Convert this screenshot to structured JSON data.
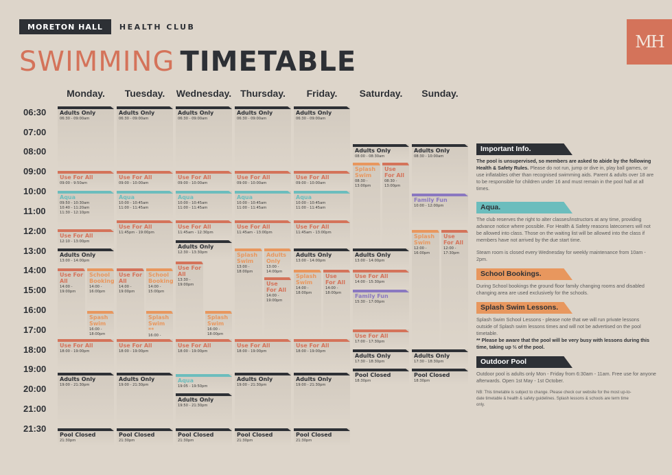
{
  "brand": {
    "name": "MORETON HALL",
    "sub": "HEALTH CLUB",
    "logo": "MH"
  },
  "title": {
    "part1": "SWIMMING",
    "part2": "TIMETABLE"
  },
  "colors": {
    "adults": "#2d3035",
    "useforall": "#d4735a",
    "aqua": "#6bbdbd",
    "splash": "#e8975e",
    "school": "#e8975e",
    "family": "#8a78c0"
  },
  "times": [
    "06:30",
    "07:00",
    "08:00",
    "09:00",
    "10:00",
    "11:00",
    "12:00",
    "13:00",
    "14:00",
    "15:00",
    "16:00",
    "17:00",
    "18:00",
    "19:00",
    "20:00",
    "21:00",
    "21:30"
  ],
  "days": [
    {
      "name": "Monday.",
      "blocks": [
        {
          "type": "adults",
          "label": "Adults Only",
          "time": "06:30 - 09:00am"
        },
        {
          "type": "useforall",
          "label": "Use For All",
          "time": "09:00 - 9:50am"
        },
        {
          "type": "aqua",
          "label": "Aqua",
          "time": "09:50 - 10:30am\n10:40 - 11:20am\n11:30 - 12:10pm"
        },
        {
          "type": "useforall",
          "label": "Use For All",
          "time": "12:10 - 13:00pm"
        },
        {
          "type": "adults",
          "label": "Adults Only",
          "time": "13:00 - 14:00pm"
        },
        {
          "type": "useforall",
          "label": "Use For All",
          "time": "14:00 - 19:00pm"
        },
        {
          "type": "school",
          "label": "School Booking",
          "time": "14:00 - 16:00pm"
        },
        {
          "type": "splash",
          "label": "Spash Swim",
          "time": "16:00 - 18:00pm"
        },
        {
          "type": "useforall",
          "label": "Use For All",
          "time": "18:00 - 19:00pm"
        },
        {
          "type": "adults",
          "label": "Adults Only",
          "time": "19:00 - 21:30pm"
        },
        {
          "type": "adults",
          "label": "Pool Closed",
          "time": "21:30pm"
        }
      ]
    },
    {
      "name": "Tuesday.",
      "blocks": [
        {
          "type": "adults",
          "label": "Adults Only",
          "time": "06:30 - 09:00am"
        },
        {
          "type": "useforall",
          "label": "Use For All",
          "time": "09:00 - 10:00am"
        },
        {
          "type": "aqua",
          "label": "Aqua",
          "time": "10:00 - 10:45am\n11:00 - 11:45am"
        },
        {
          "type": "useforall",
          "label": "Use For All",
          "time": "11:45pm - 19:00pm"
        },
        {
          "type": "useforall",
          "label": "Use For All",
          "time": "14:00 - 19:00pm"
        },
        {
          "type": "school",
          "label": "School Booking",
          "time": "14:00 - 15:00pm"
        },
        {
          "type": "splash",
          "label": "Splash Swim **",
          "time": "16:00 - 18:00pm"
        },
        {
          "type": "useforall",
          "label": "Use For All",
          "time": "18:00 - 19:00pm"
        },
        {
          "type": "adults",
          "label": "Adults Only",
          "time": "19:00 - 21:30pm"
        },
        {
          "type": "adults",
          "label": "Pool Closed",
          "time": "21:30pm"
        }
      ]
    },
    {
      "name": "Wednesday.",
      "blocks": [
        {
          "type": "adults",
          "label": "Adults Only",
          "time": "06:30 - 09:00am"
        },
        {
          "type": "useforall",
          "label": "Use For All",
          "time": "09:00 - 10:00am"
        },
        {
          "type": "aqua",
          "label": "Aqua",
          "time": "10:00 - 10:45am\n11:00 - 11:45am"
        },
        {
          "type": "useforall",
          "label": "Use For All",
          "time": "11:45am - 12:30pm"
        },
        {
          "type": "adults",
          "label": "Adults Only",
          "time": "12:30 - 13:30pm"
        },
        {
          "type": "useforall",
          "label": "Use For All",
          "time": "13:30 - 19:00pm"
        },
        {
          "type": "splash",
          "label": "Splash Swim",
          "time": "16:00 - 18:00pm"
        },
        {
          "type": "useforall",
          "label": "Use For All",
          "time": "18:00 - 19:00pm"
        },
        {
          "type": "aqua",
          "label": "Aqua",
          "time": "19:05 - 19:50pm"
        },
        {
          "type": "adults",
          "label": "Adults Only",
          "time": "19:50 - 21:30pm"
        },
        {
          "type": "adults",
          "label": "Pool Closed",
          "time": "21:30pm"
        }
      ]
    },
    {
      "name": "Thursday.",
      "blocks": [
        {
          "type": "adults",
          "label": "Adults Only",
          "time": "06:30 - 09:00am"
        },
        {
          "type": "useforall",
          "label": "Use For All",
          "time": "09:00 - 10:00am"
        },
        {
          "type": "aqua",
          "label": "Aqua",
          "time": "10:00 - 10:45am\n11:00 - 11:45am"
        },
        {
          "type": "useforall",
          "label": "Use For All",
          "time": "11:45am - 13:00pm"
        },
        {
          "type": "splash",
          "label": "Splash Swim",
          "time": "13:00 - 18:00pm"
        },
        {
          "type": "splash",
          "label": "Adults Only",
          "time": "13:00 - 14:00pm"
        },
        {
          "type": "useforall",
          "label": "Use For All",
          "time": "14:00 - 19:00pm"
        },
        {
          "type": "useforall",
          "label": "Use For All",
          "time": "18:00 - 19:00pm"
        },
        {
          "type": "adults",
          "label": "Adults Only",
          "time": "19:00 - 21:30pm"
        },
        {
          "type": "adults",
          "label": "Pool Closed",
          "time": "21:30pm"
        }
      ]
    },
    {
      "name": "Friday.",
      "blocks": [
        {
          "type": "adults",
          "label": "Adults Only",
          "time": "06:30 - 09:00am"
        },
        {
          "type": "useforall",
          "label": "Use For All",
          "time": "09:00 - 10:00am"
        },
        {
          "type": "aqua",
          "label": "Aqua",
          "time": "10:00 - 10:45am\n11:00 - 11:45am"
        },
        {
          "type": "useforall",
          "label": "Use For All",
          "time": "11:45am - 13:00pm"
        },
        {
          "type": "adults",
          "label": "Adults Only",
          "time": "13:00 - 14:00pm"
        },
        {
          "type": "splash",
          "label": "Splash Swim",
          "time": "14:00 - 18:00pm"
        },
        {
          "type": "useforall",
          "label": "Use For All",
          "time": "14:00 - 18:00pm"
        },
        {
          "type": "useforall",
          "label": "Use For All",
          "time": "18:00 - 19:00pm"
        },
        {
          "type": "adults",
          "label": "Adults Only",
          "time": "19:00 - 21:30pm"
        },
        {
          "type": "adults",
          "label": "Pool Closed",
          "time": "21:30pm"
        }
      ]
    },
    {
      "name": "Saturday.",
      "blocks": [
        {
          "type": "adults",
          "label": "Adults Only",
          "time": "08:00 - 08:30am"
        },
        {
          "type": "splash",
          "label": "Splash Swim",
          "time": "08:30 - 13:00pm"
        },
        {
          "type": "useforall",
          "label": "Use For All",
          "time": "08:30 - 13:00pm"
        },
        {
          "type": "adults",
          "label": "Adults Only",
          "time": "13:00 - 14:00pm"
        },
        {
          "type": "useforall",
          "label": "Use For All",
          "time": "14:00 - 15:30pm"
        },
        {
          "type": "family",
          "label": "Family Fun",
          "time": "15:30 - 17:00pm"
        },
        {
          "type": "useforall",
          "label": "Use For All",
          "time": "17:00 - 17:30pm"
        },
        {
          "type": "adults",
          "label": "Adults Only",
          "time": "17:30 - 18:30pm"
        },
        {
          "type": "adults",
          "label": "Pool Closed",
          "time": "18:30pm"
        }
      ]
    },
    {
      "name": "Sunday.",
      "blocks": [
        {
          "type": "adults",
          "label": "Adults Only",
          "time": "08:30 - 10:00am"
        },
        {
          "type": "family",
          "label": "Family Fun",
          "time": "10:00 - 12:00pm"
        },
        {
          "type": "splash",
          "label": "Splash Swim",
          "time": "12:00 - 16:00pm"
        },
        {
          "type": "useforall",
          "label": "Use For All",
          "time": "12:00 - 17:30pm"
        },
        {
          "type": "adults",
          "label": "Adults Only",
          "time": "17:30 - 18:30pm"
        },
        {
          "type": "adults",
          "label": "Pool Closed",
          "time": "18:30pm"
        }
      ]
    }
  ],
  "info": {
    "important": {
      "heading": "Important Info.",
      "bold": "The pool is unsupervised, so members are asked to abide by the following Health & Safety Rules.",
      "text": " Please do not run, jump or dive in, play ball games, or use inflatables other than recognised swimming aids. Parent & adults over 18 are to be responsible for children under 16 and must remain in the pool hall at all times."
    },
    "aqua": {
      "heading": "Aqua.",
      "text": "The club reserves the right to alter classes/instructors at any time, providing advance notice where possible. For Health & Safety reasons latecomers will not be allowed into class. Those on the waiting list will be allowed into the class if members have not arrived by the due start time.",
      "steam": "Steam room is closed every Wednesday for weekly maintenance from 10am - 2pm."
    },
    "school": {
      "heading": "School Bookings.",
      "text": "During School bookings the ground floor family changing rooms and disabled changing area are used exclusively for the schools."
    },
    "splash": {
      "heading": "Splash Swim Lessons.",
      "text": "Splash Swim School Lessons - please note that we will run private lessons outside of Splash swim lessons times and will not be advertised on the pool timetable.",
      "bold": "** Please be aware that the pool will be very busy with lessons during this time, taking up ⅔ of the pool."
    },
    "outdoor": {
      "heading": "Outdoor Pool",
      "text": "Outdoor pool is adults only Mon - Friday from 6:30am - 11am. Free use for anyone afterwards. Open 1st May - 1st October."
    },
    "nb": "NB: This timetable is subject to change. Please check our website for the most up-to-date timetable & health & safety guidelines. Splash lessons & schools are term time only."
  }
}
